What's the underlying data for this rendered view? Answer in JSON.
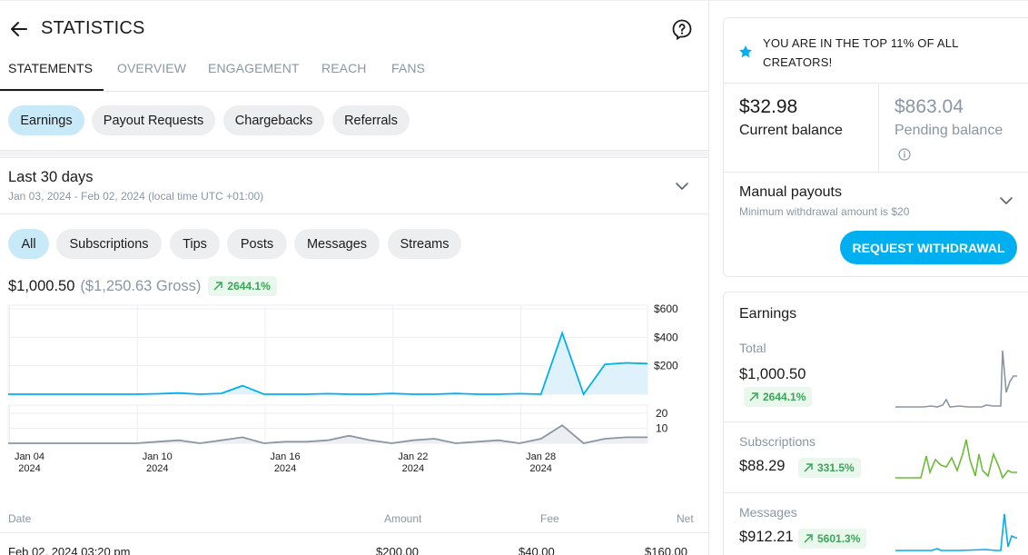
{
  "header": {
    "title": "STATISTICS"
  },
  "tabs": [
    {
      "label": "STATEMENTS"
    },
    {
      "label": "OVERVIEW"
    },
    {
      "label": "ENGAGEMENT"
    },
    {
      "label": "REACH"
    },
    {
      "label": "FANS"
    }
  ],
  "statement_types": [
    "Earnings",
    "Payout Requests",
    "Chargebacks",
    "Referrals"
  ],
  "period": {
    "title": "Last 30 days",
    "range": "Jan 03, 2024 - Feb 02, 2024 (local time UTC +01:00)"
  },
  "sources": [
    "All",
    "Subscriptions",
    "Tips",
    "Posts",
    "Messages",
    "Streams"
  ],
  "summary": {
    "net": "$1,000.50",
    "gross": "($1,250.63 Gross)",
    "change": "2644.1%"
  },
  "table": {
    "headers": {
      "date": "Date",
      "amount": "Amount",
      "fee": "Fee",
      "net": "Net"
    },
    "first_row": {
      "date": "Feb 02, 2024 03:20 pm",
      "amount": "$200.00",
      "fee": "$40.00",
      "net": "$160.00"
    }
  },
  "top_creator": {
    "text": "YOU ARE IN THE TOP 11% OF ALL CREATORS!"
  },
  "balances": {
    "current": {
      "amount": "$32.98",
      "label": "Current balance"
    },
    "pending": {
      "amount": "$863.04",
      "label": "Pending balance"
    }
  },
  "payouts": {
    "title": "Manual payouts",
    "note": "Minimum withdrawal amount is $20",
    "button": "REQUEST WITHDRAWAL"
  },
  "earnings_card": {
    "title": "Earnings",
    "rows": [
      {
        "label": "Total",
        "value": "$1,000.50",
        "change": "2644.1%",
        "color": "#8a96a3"
      },
      {
        "label": "Subscriptions",
        "value": "$88.29",
        "change": "331.5%",
        "color": "#6dbb3a"
      },
      {
        "label": "Messages",
        "value": "$912.21",
        "change": "5601.3%",
        "color": "#00aff0"
      }
    ]
  },
  "colors": {
    "accent": "#00aff0",
    "positive": "#3aa55a",
    "muted": "#8a96a3"
  },
  "chart_data": {
    "type": "line",
    "x_ticks": [
      {
        "date": "2024-01-04",
        "label": "Jan 04",
        "sub": "2024"
      },
      {
        "date": "2024-01-10",
        "label": "Jan 10",
        "sub": "2024"
      },
      {
        "date": "2024-01-16",
        "label": "Jan 16",
        "sub": "2024"
      },
      {
        "date": "2024-01-22",
        "label": "Jan 22",
        "sub": "2024"
      },
      {
        "date": "2024-01-28",
        "label": "Jan 28",
        "sub": "2024"
      }
    ],
    "x": [
      "2024-01-03",
      "2024-01-04",
      "2024-01-05",
      "2024-01-06",
      "2024-01-07",
      "2024-01-08",
      "2024-01-09",
      "2024-01-10",
      "2024-01-11",
      "2024-01-12",
      "2024-01-13",
      "2024-01-14",
      "2024-01-15",
      "2024-01-16",
      "2024-01-17",
      "2024-01-18",
      "2024-01-19",
      "2024-01-20",
      "2024-01-21",
      "2024-01-22",
      "2024-01-23",
      "2024-01-24",
      "2024-01-25",
      "2024-01-26",
      "2024-01-27",
      "2024-01-28",
      "2024-01-29",
      "2024-01-30",
      "2024-01-31",
      "2024-02-01",
      "2024-02-02"
    ],
    "amount": {
      "yticks": [
        "$600",
        "$400",
        "$200"
      ],
      "ylim": [
        0,
        600
      ],
      "values": [
        0,
        0,
        0,
        0,
        0,
        0,
        0,
        3,
        8,
        0,
        6,
        60,
        0,
        0,
        0,
        4,
        0,
        0,
        5,
        0,
        0,
        5,
        0,
        0,
        4,
        0,
        430,
        0,
        210,
        220,
        215
      ]
    },
    "count": {
      "yticks": [
        "20",
        "10"
      ],
      "ylim": [
        0,
        23
      ],
      "values": [
        0,
        0,
        0,
        0,
        0,
        0,
        0,
        1,
        2,
        0,
        2,
        4,
        0,
        1,
        1,
        2,
        5,
        2,
        0,
        2,
        3,
        0,
        1,
        2,
        0,
        3,
        12,
        0,
        3,
        4,
        4
      ]
    },
    "grid": true
  }
}
